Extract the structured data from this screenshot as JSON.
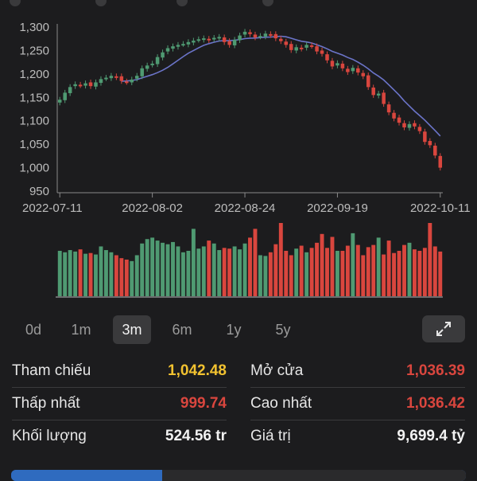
{
  "colors": {
    "up": "#4f9a72",
    "down": "#d9463e",
    "ref": "#f2c230",
    "ma": "#6b74c9",
    "bg": "#1c1c1e"
  },
  "chart_data": {
    "type": "candlestick",
    "ylim": [
      950,
      1300
    ],
    "yticks": [
      "1,300",
      "1,250",
      "1,200",
      "1,150",
      "1,100",
      "1,050",
      "1,000",
      "950"
    ],
    "xtick_labels": [
      "2022-07-11",
      "2022-08-02",
      "2022-08-24",
      "2022-09-19",
      "2022-10-11"
    ],
    "closes": [
      1145,
      1160,
      1172,
      1178,
      1176,
      1180,
      1174,
      1182,
      1189,
      1192,
      1196,
      1193,
      1185,
      1183,
      1188,
      1196,
      1212,
      1218,
      1222,
      1236,
      1246,
      1255,
      1259,
      1262,
      1264,
      1268,
      1271,
      1274,
      1276,
      1272,
      1277,
      1279,
      1268,
      1262,
      1273,
      1282,
      1290,
      1285,
      1278,
      1281,
      1286,
      1283,
      1276,
      1270,
      1262,
      1251,
      1257,
      1254,
      1262,
      1260,
      1248,
      1243,
      1229,
      1216,
      1223,
      1212,
      1204,
      1213,
      1203,
      1195,
      1172,
      1155,
      1158,
      1136,
      1118,
      1105,
      1096,
      1086,
      1093,
      1088,
      1078,
      1055,
      1048,
      1026,
      1000
    ],
    "volumes": [
      0.62,
      0.6,
      0.63,
      0.61,
      0.64,
      0.58,
      0.59,
      0.57,
      0.68,
      0.63,
      0.6,
      0.56,
      0.52,
      0.5,
      0.48,
      0.56,
      0.72,
      0.78,
      0.8,
      0.76,
      0.73,
      0.71,
      0.74,
      0.68,
      0.6,
      0.62,
      0.92,
      0.65,
      0.68,
      0.76,
      0.72,
      0.63,
      0.66,
      0.65,
      0.68,
      0.64,
      0.72,
      0.8,
      0.92,
      0.56,
      0.55,
      0.6,
      0.71,
      1.0,
      0.62,
      0.56,
      0.65,
      0.69,
      0.6,
      0.66,
      0.73,
      0.85,
      0.66,
      0.81,
      0.62,
      0.62,
      0.69,
      0.86,
      0.7,
      0.56,
      0.67,
      0.7,
      0.8,
      0.57,
      0.76,
      0.59,
      0.62,
      0.7,
      0.73,
      0.64,
      0.62,
      0.66,
      1.0,
      0.68,
      0.61
    ]
  },
  "range_tabs": {
    "items": [
      "0d",
      "1m",
      "3m",
      "6m",
      "1y",
      "5y"
    ],
    "active": "3m"
  },
  "stats": {
    "ref_label": "Tham chiếu",
    "ref_value": "1,042.48",
    "open_label": "Mở cửa",
    "open_value": "1,036.39",
    "low_label": "Thấp nhất",
    "low_value": "999.74",
    "high_label": "Cao nhất",
    "high_value": "1,036.42",
    "volume_label": "Khối lượng",
    "volume_value": "524.56 tr",
    "value_label": "Giá trị",
    "value_value": "9,699.4 tỷ"
  },
  "icons": {
    "expand": "expand-arrows-icon"
  }
}
